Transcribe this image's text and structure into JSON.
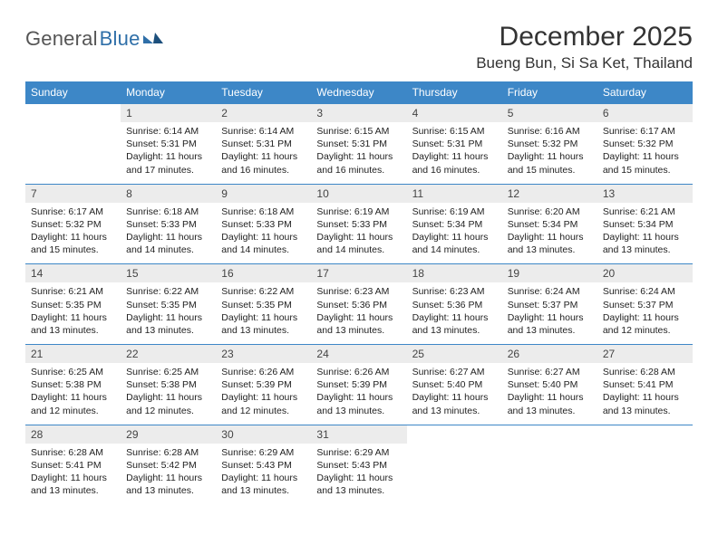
{
  "brand": {
    "general": "General",
    "blue": "Blue"
  },
  "title": "December 2025",
  "location": "Bueng Bun, Si Sa Ket, Thailand",
  "colors": {
    "header_bg": "#3d87c7",
    "header_text": "#ffffff",
    "daynum_bg": "#ececec",
    "row_divider": "#3d87c7",
    "body_text": "#222222",
    "page_bg": "#ffffff",
    "logo_gray": "#555555",
    "logo_blue": "#2f6fa8"
  },
  "daysOfWeek": [
    "Sunday",
    "Monday",
    "Tuesday",
    "Wednesday",
    "Thursday",
    "Friday",
    "Saturday"
  ],
  "weeks": [
    [
      {
        "n": "",
        "lines": [
          "",
          "",
          "",
          ""
        ]
      },
      {
        "n": "1",
        "lines": [
          "Sunrise: 6:14 AM",
          "Sunset: 5:31 PM",
          "Daylight: 11 hours",
          "and 17 minutes."
        ]
      },
      {
        "n": "2",
        "lines": [
          "Sunrise: 6:14 AM",
          "Sunset: 5:31 PM",
          "Daylight: 11 hours",
          "and 16 minutes."
        ]
      },
      {
        "n": "3",
        "lines": [
          "Sunrise: 6:15 AM",
          "Sunset: 5:31 PM",
          "Daylight: 11 hours",
          "and 16 minutes."
        ]
      },
      {
        "n": "4",
        "lines": [
          "Sunrise: 6:15 AM",
          "Sunset: 5:31 PM",
          "Daylight: 11 hours",
          "and 16 minutes."
        ]
      },
      {
        "n": "5",
        "lines": [
          "Sunrise: 6:16 AM",
          "Sunset: 5:32 PM",
          "Daylight: 11 hours",
          "and 15 minutes."
        ]
      },
      {
        "n": "6",
        "lines": [
          "Sunrise: 6:17 AM",
          "Sunset: 5:32 PM",
          "Daylight: 11 hours",
          "and 15 minutes."
        ]
      }
    ],
    [
      {
        "n": "7",
        "lines": [
          "Sunrise: 6:17 AM",
          "Sunset: 5:32 PM",
          "Daylight: 11 hours",
          "and 15 minutes."
        ]
      },
      {
        "n": "8",
        "lines": [
          "Sunrise: 6:18 AM",
          "Sunset: 5:33 PM",
          "Daylight: 11 hours",
          "and 14 minutes."
        ]
      },
      {
        "n": "9",
        "lines": [
          "Sunrise: 6:18 AM",
          "Sunset: 5:33 PM",
          "Daylight: 11 hours",
          "and 14 minutes."
        ]
      },
      {
        "n": "10",
        "lines": [
          "Sunrise: 6:19 AM",
          "Sunset: 5:33 PM",
          "Daylight: 11 hours",
          "and 14 minutes."
        ]
      },
      {
        "n": "11",
        "lines": [
          "Sunrise: 6:19 AM",
          "Sunset: 5:34 PM",
          "Daylight: 11 hours",
          "and 14 minutes."
        ]
      },
      {
        "n": "12",
        "lines": [
          "Sunrise: 6:20 AM",
          "Sunset: 5:34 PM",
          "Daylight: 11 hours",
          "and 13 minutes."
        ]
      },
      {
        "n": "13",
        "lines": [
          "Sunrise: 6:21 AM",
          "Sunset: 5:34 PM",
          "Daylight: 11 hours",
          "and 13 minutes."
        ]
      }
    ],
    [
      {
        "n": "14",
        "lines": [
          "Sunrise: 6:21 AM",
          "Sunset: 5:35 PM",
          "Daylight: 11 hours",
          "and 13 minutes."
        ]
      },
      {
        "n": "15",
        "lines": [
          "Sunrise: 6:22 AM",
          "Sunset: 5:35 PM",
          "Daylight: 11 hours",
          "and 13 minutes."
        ]
      },
      {
        "n": "16",
        "lines": [
          "Sunrise: 6:22 AM",
          "Sunset: 5:35 PM",
          "Daylight: 11 hours",
          "and 13 minutes."
        ]
      },
      {
        "n": "17",
        "lines": [
          "Sunrise: 6:23 AM",
          "Sunset: 5:36 PM",
          "Daylight: 11 hours",
          "and 13 minutes."
        ]
      },
      {
        "n": "18",
        "lines": [
          "Sunrise: 6:23 AM",
          "Sunset: 5:36 PM",
          "Daylight: 11 hours",
          "and 13 minutes."
        ]
      },
      {
        "n": "19",
        "lines": [
          "Sunrise: 6:24 AM",
          "Sunset: 5:37 PM",
          "Daylight: 11 hours",
          "and 13 minutes."
        ]
      },
      {
        "n": "20",
        "lines": [
          "Sunrise: 6:24 AM",
          "Sunset: 5:37 PM",
          "Daylight: 11 hours",
          "and 12 minutes."
        ]
      }
    ],
    [
      {
        "n": "21",
        "lines": [
          "Sunrise: 6:25 AM",
          "Sunset: 5:38 PM",
          "Daylight: 11 hours",
          "and 12 minutes."
        ]
      },
      {
        "n": "22",
        "lines": [
          "Sunrise: 6:25 AM",
          "Sunset: 5:38 PM",
          "Daylight: 11 hours",
          "and 12 minutes."
        ]
      },
      {
        "n": "23",
        "lines": [
          "Sunrise: 6:26 AM",
          "Sunset: 5:39 PM",
          "Daylight: 11 hours",
          "and 12 minutes."
        ]
      },
      {
        "n": "24",
        "lines": [
          "Sunrise: 6:26 AM",
          "Sunset: 5:39 PM",
          "Daylight: 11 hours",
          "and 13 minutes."
        ]
      },
      {
        "n": "25",
        "lines": [
          "Sunrise: 6:27 AM",
          "Sunset: 5:40 PM",
          "Daylight: 11 hours",
          "and 13 minutes."
        ]
      },
      {
        "n": "26",
        "lines": [
          "Sunrise: 6:27 AM",
          "Sunset: 5:40 PM",
          "Daylight: 11 hours",
          "and 13 minutes."
        ]
      },
      {
        "n": "27",
        "lines": [
          "Sunrise: 6:28 AM",
          "Sunset: 5:41 PM",
          "Daylight: 11 hours",
          "and 13 minutes."
        ]
      }
    ],
    [
      {
        "n": "28",
        "lines": [
          "Sunrise: 6:28 AM",
          "Sunset: 5:41 PM",
          "Daylight: 11 hours",
          "and 13 minutes."
        ]
      },
      {
        "n": "29",
        "lines": [
          "Sunrise: 6:28 AM",
          "Sunset: 5:42 PM",
          "Daylight: 11 hours",
          "and 13 minutes."
        ]
      },
      {
        "n": "30",
        "lines": [
          "Sunrise: 6:29 AM",
          "Sunset: 5:43 PM",
          "Daylight: 11 hours",
          "and 13 minutes."
        ]
      },
      {
        "n": "31",
        "lines": [
          "Sunrise: 6:29 AM",
          "Sunset: 5:43 PM",
          "Daylight: 11 hours",
          "and 13 minutes."
        ]
      },
      {
        "n": "",
        "lines": [
          "",
          "",
          "",
          ""
        ]
      },
      {
        "n": "",
        "lines": [
          "",
          "",
          "",
          ""
        ]
      },
      {
        "n": "",
        "lines": [
          "",
          "",
          "",
          ""
        ]
      }
    ]
  ]
}
